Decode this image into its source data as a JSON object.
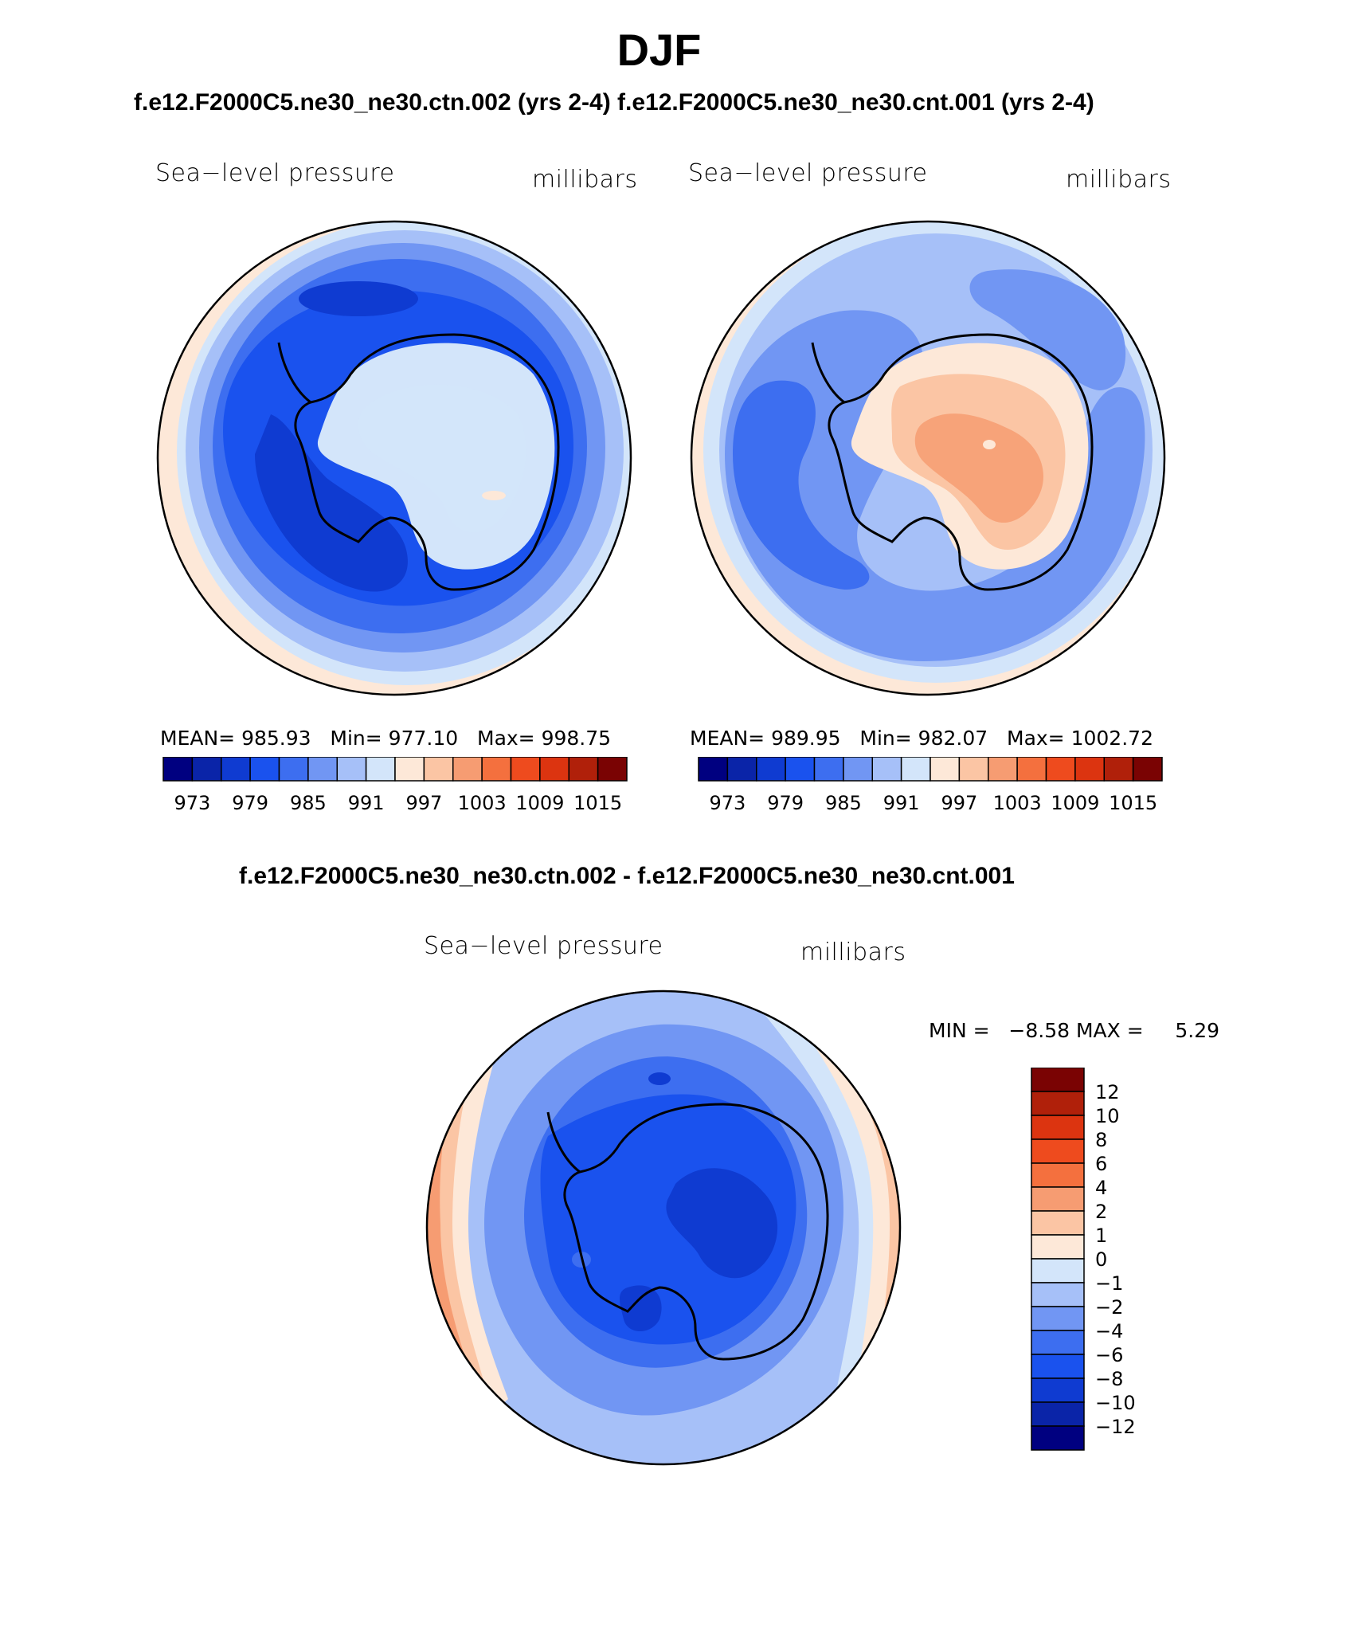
{
  "title": "DJF",
  "top_subtitle": "f.e12.F2000C5.ne30_ne30.ctn.002 (yrs 2-4) f.e12.F2000C5.ne30_ne30.cnt.001 (yrs 2-4)",
  "diff_subtitle": "f.e12.F2000C5.ne30_ne30.ctn.002 - f.e12.F2000C5.ne30_ne30.cnt.001",
  "colors": {
    "abs_scale": [
      "#000080",
      "#0a24a8",
      "#0f3bd1",
      "#1a52ee",
      "#3d6ef0",
      "#7196f3",
      "#a6c0f8",
      "#d3e5fa",
      "#fde8d8",
      "#fbc5a4",
      "#f69c72",
      "#f4703e",
      "#ee4b1e",
      "#dc3410",
      "#b0200a",
      "#7a0303"
    ],
    "diff_scale": [
      "#000080",
      "#0a24a8",
      "#0f3bd1",
      "#1a52ee",
      "#3d6ef0",
      "#7196f3",
      "#a6c0f8",
      "#d3e5fa",
      "#fde8d8",
      "#fbc5a4",
      "#f69c72",
      "#f4703e",
      "#ee4b1e",
      "#dc3410",
      "#b0200a",
      "#7a0303"
    ]
  },
  "panels": [
    {
      "id": "ctn",
      "variable": "Sea−level pressure",
      "units": "millibars",
      "stats": {
        "mean_label": "MEAN=",
        "mean": "985.93",
        "min_label": "Min=",
        "min": "977.10",
        "max_label": "Max=",
        "max": "998.75"
      },
      "colorbar_labels": [
        "973",
        "979",
        "985",
        "991",
        "997",
        "1003",
        "1009",
        "1015"
      ],
      "field": {
        "ocean_ring_levels": [
          8,
          6,
          5,
          4,
          3,
          2
        ],
        "continent_levels": [
          6,
          7,
          7
        ],
        "spots": [
          {
            "level": 8,
            "label": "high"
          }
        ]
      }
    },
    {
      "id": "cnt",
      "variable": "Sea−level pressure",
      "units": "millibars",
      "stats": {
        "mean_label": "MEAN=",
        "mean": "989.95",
        "min_label": "Min=",
        "min": "982.07",
        "max_label": "Max=",
        "max": "1002.72"
      },
      "colorbar_labels": [
        "973",
        "979",
        "985",
        "991",
        "997",
        "1003",
        "1009",
        "1015"
      ],
      "field": {
        "ocean_ring_levels": [
          8,
          7,
          6,
          5,
          4,
          4
        ],
        "continent_levels": [
          7,
          8,
          9,
          10
        ],
        "spots": [
          {
            "level": 7,
            "label": "low"
          }
        ]
      }
    },
    {
      "id": "diff",
      "variable": "Sea−level pressure",
      "units": "millibars",
      "stats": {
        "min_label": "MIN =",
        "min": "−8.58",
        "max_label": "MAX =",
        "max": "5.29"
      },
      "colorbar_labels": [
        "12",
        "10",
        "8",
        "6",
        "4",
        "2",
        "1",
        "0",
        "−1",
        "−2",
        "−4",
        "−6",
        "−8",
        "−10",
        "−12"
      ]
    }
  ]
}
